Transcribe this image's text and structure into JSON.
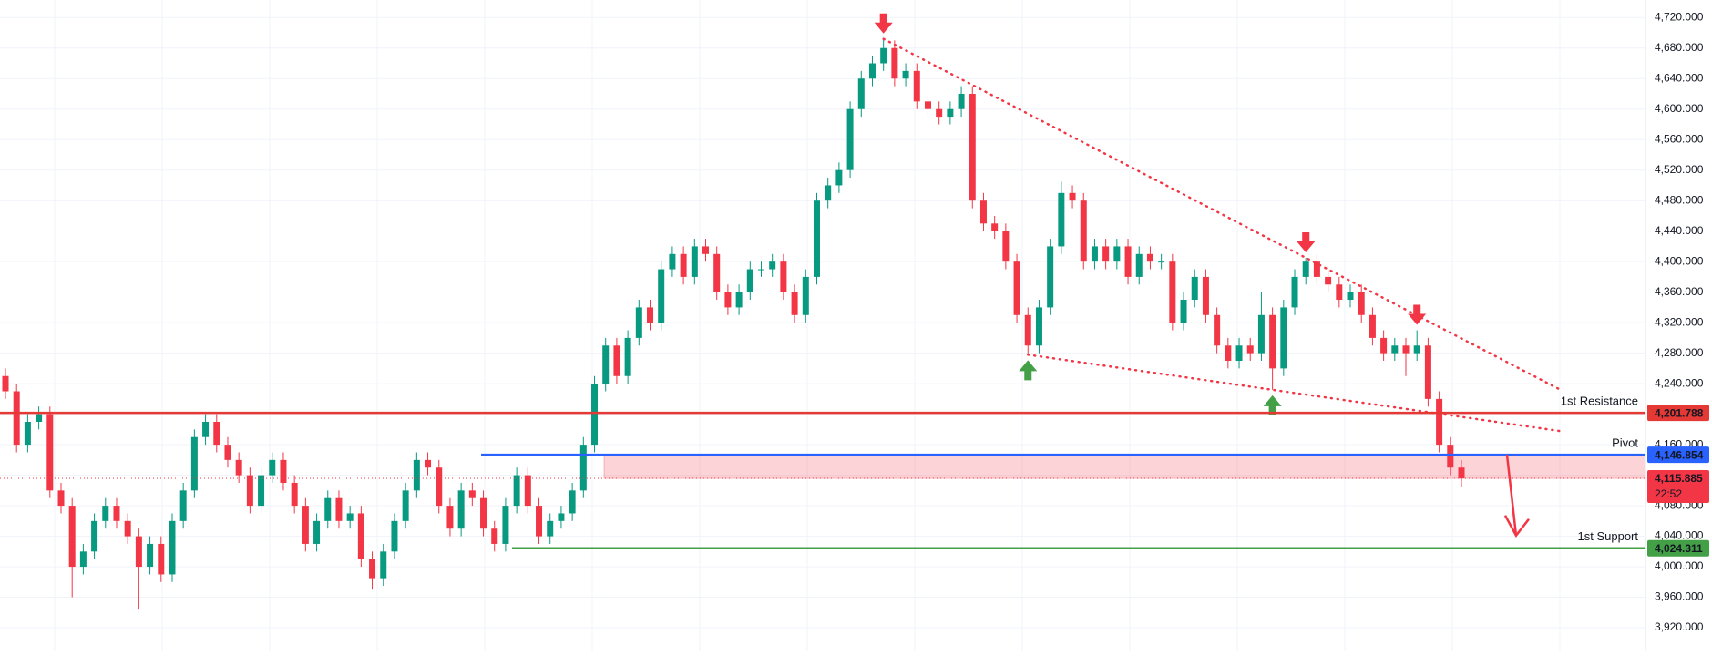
{
  "chart_data": {
    "type": "candlestick",
    "open": [
      4250,
      4230,
      4160,
      4190,
      4200,
      4100,
      4080,
      4000,
      4020,
      4060,
      4080,
      4060,
      4040,
      4000,
      4030,
      3990,
      4060,
      4100,
      4170,
      4190,
      4160,
      4140,
      4120,
      4080,
      4120,
      4140,
      4110,
      4080,
      4030,
      4060,
      4090,
      4060,
      4070,
      4010,
      3985,
      4020,
      4060,
      4100,
      4140,
      4130,
      4080,
      4050,
      4100,
      4090,
      4050,
      4030,
      4080,
      4120,
      4080,
      4040,
      4060,
      4070,
      4100,
      4160,
      4240,
      4290,
      4250,
      4300,
      4340,
      4320,
      4390,
      4410,
      4380,
      4420,
      4410,
      4360,
      4340,
      4360,
      4390,
      4390,
      4400,
      4360,
      4330,
      4380,
      4480,
      4500,
      4520,
      4600,
      4640,
      4660,
      4680,
      4640,
      4650,
      4610,
      4600,
      4590,
      4600,
      4620,
      4480,
      4450,
      4440,
      4400,
      4330,
      4290,
      4340,
      4420,
      4490,
      4480,
      4400,
      4420,
      4400,
      4420,
      4380,
      4410,
      4400,
      4400,
      4320,
      4350,
      4380,
      4330,
      4290,
      4270,
      4290,
      4280,
      4330,
      4260,
      4340,
      4380,
      4400,
      4380,
      4370,
      4350,
      4360,
      4330,
      4300,
      4280,
      4290,
      4280,
      4290,
      4220,
      4160,
      4130
    ],
    "high": [
      4260,
      4240,
      4200,
      4210,
      4210,
      4110,
      4090,
      4030,
      4070,
      4090,
      4090,
      4070,
      4050,
      4040,
      4040,
      4070,
      4110,
      4180,
      4200,
      4200,
      4170,
      4150,
      4130,
      4130,
      4150,
      4150,
      4120,
      4090,
      4070,
      4100,
      4100,
      4080,
      4080,
      4020,
      4030,
      4070,
      4110,
      4150,
      4150,
      4140,
      4090,
      4110,
      4110,
      4100,
      4060,
      4090,
      4130,
      4130,
      4090,
      4070,
      4080,
      4110,
      4170,
      4250,
      4300,
      4300,
      4310,
      4350,
      4350,
      4400,
      4420,
      4420,
      4430,
      4430,
      4420,
      4370,
      4370,
      4400,
      4400,
      4410,
      4410,
      4370,
      4390,
      4490,
      4510,
      4530,
      4610,
      4650,
      4670,
      4692,
      4690,
      4660,
      4660,
      4620,
      4610,
      4610,
      4630,
      4630,
      4490,
      4460,
      4450,
      4410,
      4340,
      4350,
      4430,
      4505,
      4500,
      4490,
      4430,
      4430,
      4430,
      4430,
      4420,
      4420,
      4410,
      4410,
      4360,
      4390,
      4390,
      4340,
      4300,
      4300,
      4300,
      4360,
      4340,
      4350,
      4390,
      4405,
      4410,
      4390,
      4380,
      4370,
      4370,
      4340,
      4310,
      4300,
      4300,
      4310,
      4300,
      4230,
      4170,
      4140
    ],
    "low": [
      4220,
      4150,
      4150,
      4180,
      4090,
      4070,
      3960,
      3990,
      4010,
      4050,
      4050,
      4030,
      3945,
      3990,
      3980,
      3980,
      4050,
      4090,
      4160,
      4150,
      4130,
      4110,
      4070,
      4070,
      4110,
      4100,
      4070,
      4020,
      4020,
      4050,
      4050,
      4050,
      4000,
      3970,
      3975,
      4010,
      4050,
      4090,
      4120,
      4070,
      4040,
      4040,
      4080,
      4040,
      4020,
      4020,
      4070,
      4070,
      4030,
      4030,
      4050,
      4060,
      4090,
      4150,
      4230,
      4240,
      4240,
      4290,
      4310,
      4310,
      4380,
      4370,
      4370,
      4400,
      4350,
      4330,
      4330,
      4350,
      4380,
      4380,
      4350,
      4320,
      4320,
      4370,
      4470,
      4490,
      4510,
      4590,
      4630,
      4650,
      4630,
      4630,
      4600,
      4590,
      4580,
      4580,
      4590,
      4470,
      4440,
      4430,
      4390,
      4320,
      4278,
      4280,
      4330,
      4410,
      4470,
      4390,
      4390,
      4390,
      4390,
      4370,
      4370,
      4390,
      4390,
      4310,
      4310,
      4340,
      4320,
      4280,
      4260,
      4260,
      4270,
      4270,
      4232,
      4250,
      4330,
      4370,
      4370,
      4360,
      4340,
      4340,
      4320,
      4290,
      4270,
      4270,
      4250,
      4270,
      4210,
      4150,
      4120,
      4105
    ],
    "close": [
      4230,
      4160,
      4190,
      4200,
      4100,
      4080,
      4000,
      4020,
      4060,
      4080,
      4060,
      4040,
      4000,
      4030,
      3990,
      4060,
      4100,
      4170,
      4190,
      4160,
      4140,
      4120,
      4080,
      4120,
      4140,
      4110,
      4080,
      4030,
      4060,
      4090,
      4060,
      4070,
      4010,
      3985,
      4020,
      4060,
      4100,
      4140,
      4130,
      4080,
      4050,
      4100,
      4090,
      4050,
      4030,
      4080,
      4120,
      4080,
      4040,
      4060,
      4070,
      4100,
      4160,
      4240,
      4290,
      4250,
      4300,
      4340,
      4320,
      4390,
      4410,
      4380,
      4420,
      4410,
      4360,
      4340,
      4360,
      4390,
      4390,
      4400,
      4360,
      4330,
      4380,
      4480,
      4500,
      4520,
      4600,
      4640,
      4660,
      4680,
      4640,
      4650,
      4610,
      4600,
      4590,
      4600,
      4620,
      4480,
      4450,
      4440,
      4400,
      4330,
      4290,
      4340,
      4420,
      4490,
      4480,
      4400,
      4420,
      4400,
      4420,
      4380,
      4410,
      4400,
      4400,
      4320,
      4350,
      4380,
      4330,
      4290,
      4270,
      4290,
      4280,
      4330,
      4260,
      4340,
      4380,
      4400,
      4380,
      4370,
      4350,
      4360,
      4330,
      4300,
      4280,
      4290,
      4280,
      4290,
      4220,
      4160,
      4130,
      4115.885
    ],
    "up_color": "#089981",
    "down_color": "#f23645",
    "ylim": [
      3889,
      4743
    ],
    "yticks": [
      {
        "value": 3920,
        "label": "3,920.000"
      },
      {
        "value": 3960,
        "label": "3,960.000"
      },
      {
        "value": 4000,
        "label": "4,000.000"
      },
      {
        "value": 4040,
        "label": "4,040.000"
      },
      {
        "value": 4080,
        "label": "4,080.000"
      },
      {
        "value": 4120,
        "label": "4,120.000"
      },
      {
        "value": 4160,
        "label": "4,160.000"
      },
      {
        "value": 4200,
        "label": "4,200.000"
      },
      {
        "value": 4240,
        "label": "4,240.000"
      },
      {
        "value": 4280,
        "label": "4,280.000"
      },
      {
        "value": 4320,
        "label": "4,320.000"
      },
      {
        "value": 4360,
        "label": "4,360.000"
      },
      {
        "value": 4400,
        "label": "4,400.000"
      },
      {
        "value": 4440,
        "label": "4,440.000"
      },
      {
        "value": 4480,
        "label": "4,480.000"
      },
      {
        "value": 4520,
        "label": "4,520.000"
      },
      {
        "value": 4560,
        "label": "4,560.000"
      },
      {
        "value": 4600,
        "label": "4,600.000"
      },
      {
        "value": 4640,
        "label": "4,640.000"
      },
      {
        "value": 4680,
        "label": "4,680.000"
      },
      {
        "value": 4720,
        "label": "4,720.000"
      }
    ],
    "grid": true,
    "levels": [
      {
        "name": "1st Resistance",
        "value": 4201.788,
        "value_label": "4,201.788",
        "color": "#e53935"
      },
      {
        "name": "Pivot",
        "value": 4146.854,
        "value_label": "4,146.854",
        "color": "#2962ff"
      },
      {
        "name": "1st Support",
        "value": 4024.311,
        "value_label": "4,024.311",
        "color": "#43a047"
      }
    ],
    "last_price": {
      "value": 4115.885,
      "label": "4,115.885",
      "countdown": "22:52",
      "color": "#f23645"
    }
  }
}
